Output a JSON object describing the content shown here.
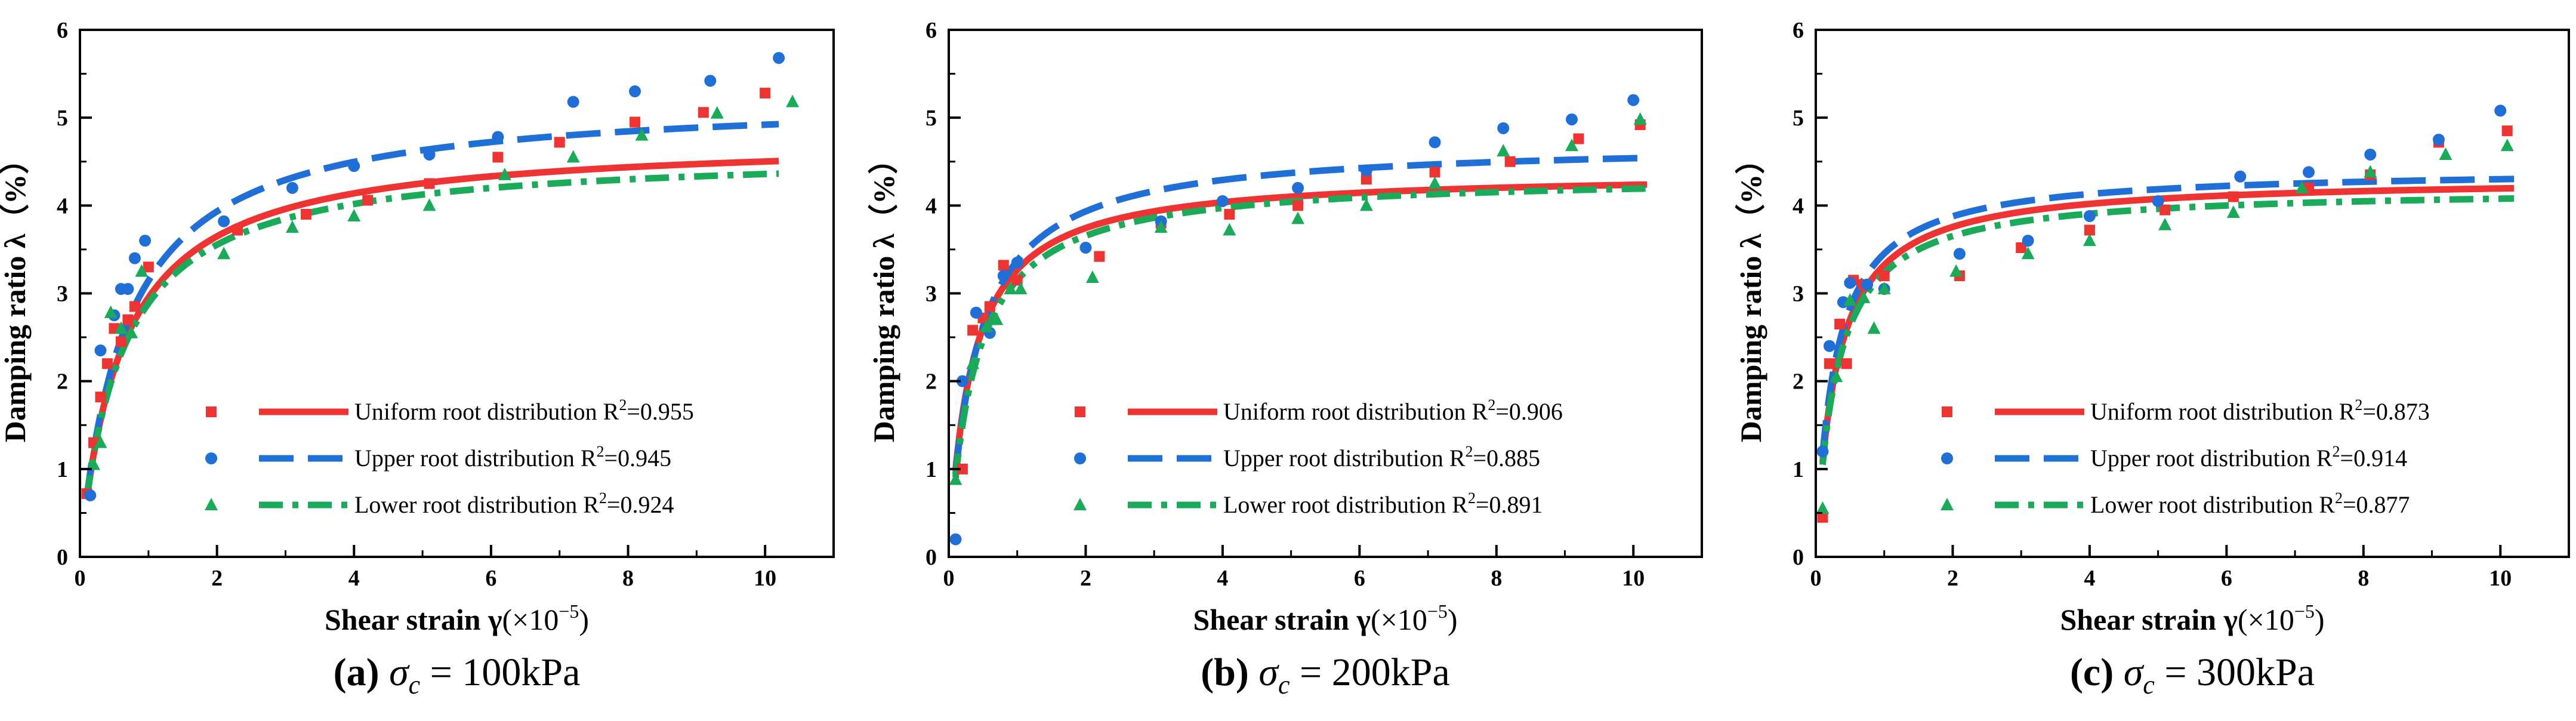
{
  "chart_data": [
    {
      "type": "scatter",
      "panel_letter": "(a)",
      "sigma_label": "σ",
      "sigma_sub": "c",
      "caption_value": " = 100kPa",
      "xlabel_main": "Shear strain γ",
      "xlabel_unit": "(×10",
      "xlabel_exp": "−5",
      "xlabel_close": ")",
      "ylabel": "Damping ratio λ（%）",
      "xlim": [
        0,
        11
      ],
      "ylim": [
        0,
        6
      ],
      "xticks": [
        0,
        2,
        4,
        6,
        8,
        10
      ],
      "yticks": [
        0,
        1,
        2,
        3,
        4,
        5,
        6
      ],
      "legend_position": "bottom-right",
      "series": [
        {
          "name": "Uniform root distribution",
          "r2_label": "R",
          "r2_exp": "2",
          "r2_value": "=0.955",
          "color": "#ee3333",
          "marker": "square",
          "line_style": "solid",
          "fit_a": 4.78,
          "fit_b": 0.62,
          "fit_n": 1.0,
          "points": [
            [
              0.1,
              0.72
            ],
            [
              0.2,
              1.3
            ],
            [
              0.3,
              1.82
            ],
            [
              0.4,
              2.2
            ],
            [
              0.5,
              2.6
            ],
            [
              0.6,
              2.45
            ],
            [
              0.7,
              2.7
            ],
            [
              0.8,
              2.85
            ],
            [
              1.0,
              3.3
            ],
            [
              2.3,
              3.72
            ],
            [
              3.3,
              3.9
            ],
            [
              4.2,
              4.06
            ],
            [
              5.1,
              4.25
            ],
            [
              6.1,
              4.55
            ],
            [
              7.0,
              4.72
            ],
            [
              8.1,
              4.95
            ],
            [
              9.1,
              5.06
            ],
            [
              10.0,
              5.28
            ]
          ]
        },
        {
          "name": "Upper root distribution",
          "r2_label": "R",
          "r2_exp": "2",
          "r2_value": "=0.945",
          "color": "#1f6fd6",
          "marker": "circle",
          "line_style": "dashed",
          "fit_a": 5.25,
          "fit_b": 0.67,
          "fit_n": 1.0,
          "points": [
            [
              0.15,
              0.7
            ],
            [
              0.3,
              2.35
            ],
            [
              0.5,
              2.75
            ],
            [
              0.6,
              3.05
            ],
            [
              0.7,
              3.05
            ],
            [
              0.8,
              3.4
            ],
            [
              0.95,
              3.6
            ],
            [
              2.1,
              3.82
            ],
            [
              3.1,
              4.2
            ],
            [
              4.0,
              4.45
            ],
            [
              5.1,
              4.58
            ],
            [
              6.1,
              4.78
            ],
            [
              7.2,
              5.18
            ],
            [
              8.1,
              5.3
            ],
            [
              9.2,
              5.42
            ],
            [
              10.2,
              5.68
            ]
          ]
        },
        {
          "name": "Lower root distribution",
          "r2_label": "R",
          "r2_exp": "2",
          "r2_value": "=0.924",
          "color": "#1aaa5a",
          "marker": "triangle",
          "line_style": "dashdot",
          "fit_a": 4.62,
          "fit_b": 0.6,
          "fit_n": 1.0,
          "points": [
            [
              0.2,
              1.05
            ],
            [
              0.3,
              1.3
            ],
            [
              0.45,
              2.78
            ],
            [
              0.6,
              2.6
            ],
            [
              0.75,
              2.55
            ],
            [
              0.9,
              3.25
            ],
            [
              2.1,
              3.45
            ],
            [
              3.1,
              3.75
            ],
            [
              4.0,
              3.88
            ],
            [
              5.1,
              4.0
            ],
            [
              6.2,
              4.35
            ],
            [
              7.2,
              4.55
            ],
            [
              8.2,
              4.8
            ],
            [
              9.3,
              5.05
            ],
            [
              10.4,
              5.18
            ]
          ]
        }
      ]
    },
    {
      "type": "scatter",
      "panel_letter": "(b)",
      "sigma_label": "σ",
      "sigma_sub": "c",
      "caption_value": " = 200kPa",
      "xlabel_main": "Shear strain γ",
      "xlabel_unit": "(×10",
      "xlabel_exp": "−5",
      "xlabel_close": ")",
      "ylabel": "Damping ratio λ（%）",
      "xlim": [
        0,
        11
      ],
      "ylim": [
        0,
        6
      ],
      "xticks": [
        0,
        2,
        4,
        6,
        8,
        10
      ],
      "yticks": [
        0,
        1,
        2,
        3,
        4,
        5,
        6
      ],
      "legend_position": "bottom-right",
      "series": [
        {
          "name": "Uniform root distribution",
          "r2_label": "R",
          "r2_exp": "2",
          "r2_value": "=0.906",
          "color": "#ee3333",
          "marker": "square",
          "line_style": "solid",
          "fit_a": 4.38,
          "fit_b": 0.34,
          "fit_n": 1.0,
          "points": [
            [
              0.2,
              1.0
            ],
            [
              0.35,
              2.58
            ],
            [
              0.5,
              2.72
            ],
            [
              0.6,
              2.85
            ],
            [
              0.8,
              3.32
            ],
            [
              1.0,
              3.15
            ],
            [
              2.2,
              3.42
            ],
            [
              3.1,
              3.8
            ],
            [
              4.1,
              3.9
            ],
            [
              5.1,
              4.0
            ],
            [
              6.1,
              4.3
            ],
            [
              7.1,
              4.38
            ],
            [
              8.2,
              4.5
            ],
            [
              9.2,
              4.76
            ],
            [
              10.1,
              4.92
            ]
          ]
        },
        {
          "name": "Upper root distribution",
          "r2_label": "R",
          "r2_exp": "2",
          "r2_value": "=0.885",
          "color": "#1f6fd6",
          "marker": "circle",
          "line_style": "dashed",
          "fit_a": 4.72,
          "fit_b": 0.4,
          "fit_n": 1.0,
          "points": [
            [
              0.1,
              0.2
            ],
            [
              0.2,
              2.0
            ],
            [
              0.4,
              2.78
            ],
            [
              0.6,
              2.55
            ],
            [
              0.8,
              3.2
            ],
            [
              1.0,
              3.35
            ],
            [
              2.0,
              3.52
            ],
            [
              3.1,
              3.82
            ],
            [
              4.0,
              4.05
            ],
            [
              5.1,
              4.2
            ],
            [
              6.1,
              4.4
            ],
            [
              7.1,
              4.72
            ],
            [
              8.1,
              4.88
            ],
            [
              9.1,
              4.98
            ],
            [
              10.0,
              5.2
            ]
          ]
        },
        {
          "name": "Lower root distribution",
          "r2_label": "R",
          "r2_exp": "2",
          "r2_value": "=0.891",
          "color": "#1aaa5a",
          "marker": "triangle",
          "line_style": "dashdot",
          "fit_a": 4.35,
          "fit_b": 0.38,
          "fit_n": 1.0,
          "points": [
            [
              0.1,
              0.88
            ],
            [
              0.35,
              2.2
            ],
            [
              0.55,
              2.62
            ],
            [
              0.7,
              2.7
            ],
            [
              0.9,
              3.05
            ],
            [
              1.05,
              3.05
            ],
            [
              2.1,
              3.18
            ],
            [
              3.1,
              3.75
            ],
            [
              4.1,
              3.72
            ],
            [
              5.1,
              3.85
            ],
            [
              6.1,
              4.0
            ],
            [
              7.1,
              4.25
            ],
            [
              8.1,
              4.62
            ],
            [
              9.1,
              4.68
            ],
            [
              10.1,
              4.98
            ]
          ]
        }
      ]
    },
    {
      "type": "scatter",
      "panel_letter": "(c)",
      "sigma_label": "σ",
      "sigma_sub": "c",
      "caption_value": " = 300kPa",
      "xlabel_main": "Shear strain γ",
      "xlabel_unit": "(×10",
      "xlabel_exp": "−5",
      "xlabel_close": ")",
      "ylabel": "Damping ratio λ（%）",
      "xlim": [
        0,
        11
      ],
      "ylim": [
        0,
        6
      ],
      "xticks": [
        0,
        2,
        4,
        6,
        8,
        10
      ],
      "yticks": [
        0,
        1,
        2,
        3,
        4,
        5,
        6
      ],
      "legend_position": "bottom-right",
      "series": [
        {
          "name": "Uniform root distribution",
          "r2_label": "R",
          "r2_exp": "2",
          "r2_value": "=0.873",
          "color": "#ee3333",
          "marker": "square",
          "line_style": "solid",
          "fit_a": 4.32,
          "fit_b": 0.3,
          "fit_n": 1.0,
          "points": [
            [
              0.1,
              0.45
            ],
            [
              0.2,
              2.2
            ],
            [
              0.35,
              2.65
            ],
            [
              0.45,
              2.2
            ],
            [
              0.55,
              3.15
            ],
            [
              0.7,
              3.1
            ],
            [
              1.0,
              3.2
            ],
            [
              2.1,
              3.2
            ],
            [
              3.0,
              3.52
            ],
            [
              4.0,
              3.72
            ],
            [
              5.1,
              3.95
            ],
            [
              6.1,
              4.1
            ],
            [
              7.2,
              4.2
            ],
            [
              8.1,
              4.35
            ],
            [
              9.1,
              4.72
            ],
            [
              10.1,
              4.85
            ]
          ]
        },
        {
          "name": "Upper root distribution",
          "r2_label": "R",
          "r2_exp": "2",
          "r2_value": "=0.914",
          "color": "#1f6fd6",
          "marker": "circle",
          "line_style": "dashed",
          "fit_a": 4.42,
          "fit_b": 0.28,
          "fit_n": 1.0,
          "points": [
            [
              0.1,
              1.2
            ],
            [
              0.2,
              2.4
            ],
            [
              0.4,
              2.9
            ],
            [
              0.5,
              3.12
            ],
            [
              0.75,
              3.1
            ],
            [
              1.0,
              3.05
            ],
            [
              2.1,
              3.45
            ],
            [
              3.1,
              3.6
            ],
            [
              4.0,
              3.88
            ],
            [
              5.0,
              4.05
            ],
            [
              6.2,
              4.33
            ],
            [
              7.2,
              4.38
            ],
            [
              8.1,
              4.58
            ],
            [
              9.1,
              4.75
            ],
            [
              10.0,
              5.08
            ]
          ]
        },
        {
          "name": "Lower root distribution",
          "r2_label": "R",
          "r2_exp": "2",
          "r2_value": "=0.877",
          "color": "#1aaa5a",
          "marker": "triangle",
          "line_style": "dashdot",
          "fit_a": 4.2,
          "fit_b": 0.3,
          "fit_n": 1.0,
          "points": [
            [
              0.1,
              0.55
            ],
            [
              0.3,
              2.05
            ],
            [
              0.5,
              2.92
            ],
            [
              0.7,
              2.95
            ],
            [
              0.85,
              2.6
            ],
            [
              1.0,
              3.05
            ],
            [
              2.05,
              3.25
            ],
            [
              3.1,
              3.45
            ],
            [
              4.0,
              3.6
            ],
            [
              5.1,
              3.78
            ],
            [
              6.1,
              3.92
            ],
            [
              7.1,
              4.2
            ],
            [
              8.1,
              4.38
            ],
            [
              9.2,
              4.58
            ],
            [
              10.1,
              4.68
            ]
          ]
        }
      ]
    }
  ]
}
